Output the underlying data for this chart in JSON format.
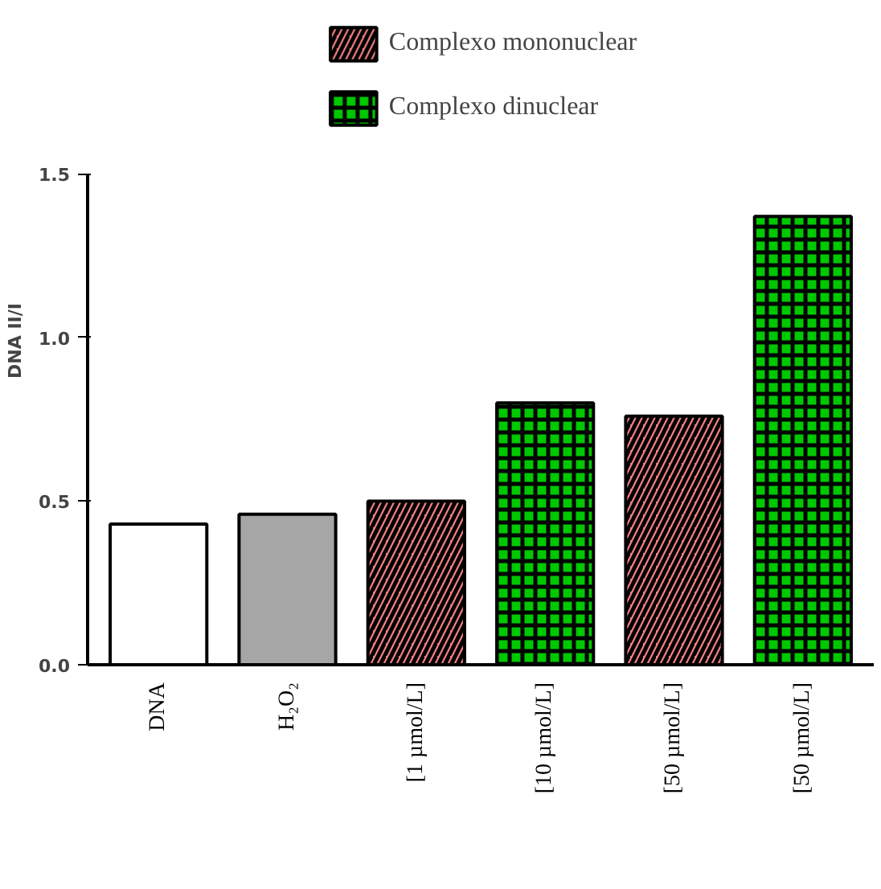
{
  "chart_data": {
    "type": "bar",
    "ylabel": "DNA II/I",
    "categories": [
      "DNA",
      "H₂O₂",
      "[1 µmol/L]",
      "[10 µmol/L]",
      "[50 µmol/L]",
      "[50 µmol/L]"
    ],
    "series": [
      {
        "colors": [
          "#ffffff",
          "#a6a6a6",
          null,
          null,
          null,
          null
        ],
        "values": [
          0.43,
          0.46,
          null,
          null,
          null,
          null
        ]
      },
      {
        "name": "Complexo mononuclear",
        "color": "#f28080",
        "values": [
          null,
          null,
          0.5,
          null,
          0.76,
          null
        ]
      },
      {
        "name": "Complexo dinuclear",
        "color": "#00c800",
        "values": [
          null,
          null,
          null,
          0.8,
          null,
          1.37
        ]
      }
    ],
    "ylim": [
      0,
      1.5
    ],
    "yticks": [
      {
        "value": 0,
        "label": "0.0"
      },
      0.5,
      {
        "value": 1,
        "label": "1.0"
      },
      1.5
    ],
    "grid": false,
    "legend": "top"
  }
}
